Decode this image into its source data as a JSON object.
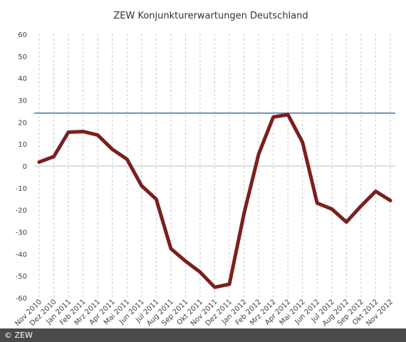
{
  "chart_data": {
    "type": "line",
    "title": "ZEW Konjunkturerwartungen Deutschland",
    "xlabel": "",
    "ylabel": "",
    "ylim": [
      -60,
      60
    ],
    "yticks": [
      60,
      50,
      40,
      30,
      20,
      10,
      0,
      -10,
      -20,
      -30,
      -40,
      -50,
      -60
    ],
    "grid": "vertical-dashed",
    "categories": [
      "Nov 2010",
      "Dez 2010",
      "Jan 2011",
      "Feb 2011",
      "Mrz 2011",
      "Apr 2011",
      "Mai 2011",
      "Jun 2011",
      "Jul 2011",
      "Aug 2011",
      "Sep 2011",
      "Okt 2011",
      "Nov 2011",
      "Dez 2011",
      "Jan 2012",
      "Feb 2012",
      "Mrz 2012",
      "Apr 2012",
      "Mai 2012",
      "Jun 2012",
      "Jul 2012",
      "Aug 2012",
      "Sep 2012",
      "Okt 2012",
      "Nov 2012"
    ],
    "series": [
      {
        "values": [
          1.8,
          4.3,
          15.4,
          15.7,
          14.1,
          7.6,
          3.1,
          -9.0,
          -15.1,
          -37.6,
          -43.3,
          -48.3,
          -55.2,
          -53.8,
          -21.6,
          5.4,
          22.3,
          23.4,
          10.8,
          -16.9,
          -19.6,
          -25.5,
          -18.2,
          -11.5,
          -15.7
        ],
        "color": "#7a1f1f"
      }
    ],
    "reference_line": {
      "value": 24.1,
      "color": "#6f8cb8"
    }
  },
  "footer": {
    "copyright": "© ZEW"
  }
}
